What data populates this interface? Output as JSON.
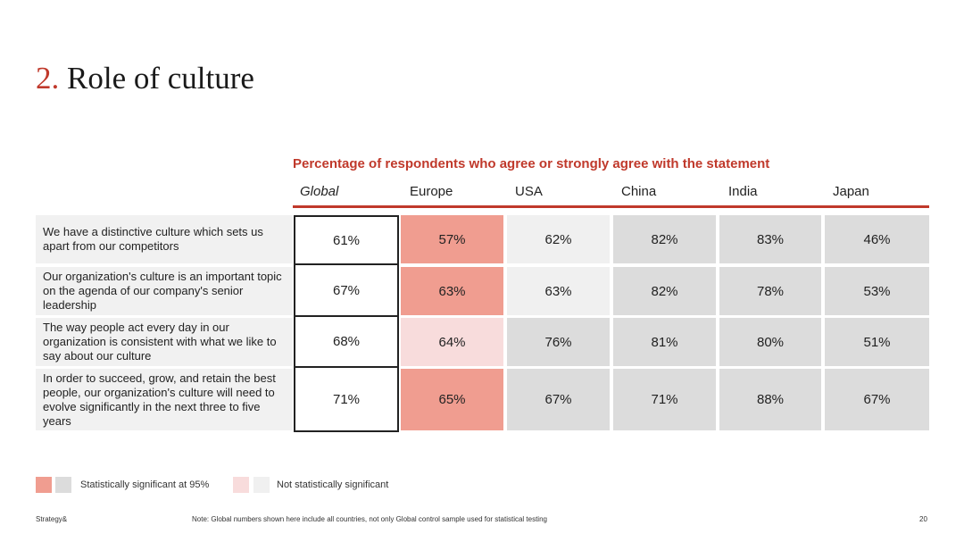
{
  "title": {
    "number": "2.",
    "text": "Role of culture"
  },
  "subtitle": "Percentage of respondents who agree or strongly agree with the statement",
  "columns": [
    "Global",
    "Europe",
    "USA",
    "China",
    "India",
    "Japan"
  ],
  "rows": [
    {
      "label": "We have a distinctive culture which sets us apart from our competitors",
      "values": [
        "61%",
        "57%",
        "62%",
        "82%",
        "83%",
        "46%"
      ],
      "significance": [
        "global",
        "sig",
        "nsig",
        "sig",
        "sig",
        "sig"
      ]
    },
    {
      "label": "Our organization's culture is an important topic on the agenda of our company's senior leadership",
      "values": [
        "67%",
        "63%",
        "63%",
        "82%",
        "78%",
        "53%"
      ],
      "significance": [
        "global",
        "sig",
        "nsig",
        "sig",
        "sig",
        "sig"
      ]
    },
    {
      "label": "The way people act every day in our organization is consistent with what we like to say about our culture",
      "values": [
        "68%",
        "64%",
        "76%",
        "81%",
        "80%",
        "51%"
      ],
      "significance": [
        "global",
        "nsig",
        "sig",
        "sig",
        "sig",
        "sig"
      ]
    },
    {
      "label": "In order to succeed, grow, and retain the best people, our organization's culture will need to evolve significantly in the next three to five years",
      "values": [
        "71%",
        "65%",
        "67%",
        "71%",
        "88%",
        "67%"
      ],
      "significance": [
        "global",
        "sig",
        "sig",
        "sig",
        "sig",
        "sig"
      ]
    }
  ],
  "legend": {
    "significant": "Statistically significant at 95%",
    "not_significant": "Not statistically significant"
  },
  "footer": {
    "brand": "Strategy&",
    "note": "Note: Global numbers shown here include all countries, not only Global control sample used for statistical testing",
    "page": "20"
  },
  "colors": {
    "accent": "#c0392b",
    "significant_red": "#f09d90",
    "not_significant_red": "#f8dcdc",
    "significant_grey": "#dcdcdc",
    "not_significant_grey": "#f0f0f0"
  }
}
